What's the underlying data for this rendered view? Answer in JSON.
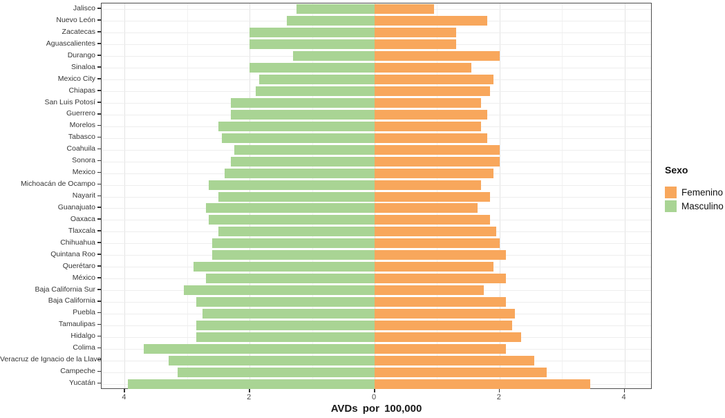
{
  "chart_data": {
    "type": "bar",
    "variant": "diverging-horizontal-pyramid",
    "title": "",
    "xlabel": "AVDs por 100,000",
    "ylabel": "",
    "xlim": [
      -4.4,
      4.45
    ],
    "grid": "major-and-minor",
    "x_ticks": [
      {
        "value": -4,
        "label": "4"
      },
      {
        "value": -2,
        "label": "2"
      },
      {
        "value": 0,
        "label": "0"
      },
      {
        "value": 2,
        "label": "2"
      },
      {
        "value": 4,
        "label": "4"
      }
    ],
    "legend": {
      "title": "Sexo",
      "position": "right",
      "items": [
        {
          "label": "Femenino",
          "color": "#F8A75C"
        },
        {
          "label": "Masculino",
          "color": "#A9D494"
        }
      ]
    },
    "categories": [
      "Jalisco",
      "Nuevo León",
      "Zacatecas",
      "Aguascalientes",
      "Durango",
      "Sinaloa",
      "Mexico City",
      "Chiapas",
      "San Luis Potosí",
      "Guerrero",
      "Morelos",
      "Tabasco",
      "Coahuila",
      "Sonora",
      "Mexico",
      "Michoacán de Ocampo",
      "Nayarit",
      "Guanajuato",
      "Oaxaca",
      "Tlaxcala",
      "Chihuahua",
      "Quintana Roo",
      "Querétaro",
      "México",
      "Baja California Sur",
      "Baja California",
      "Puebla",
      "Tamaulipas",
      "Hidalgo",
      "Colima",
      "Veracruz de Ignacio de la Llave",
      "Campeche",
      "Yucatán"
    ],
    "series": [
      {
        "name": "Masculino",
        "side": "left",
        "color": "#A9D494",
        "values": [
          1.25,
          1.4,
          2.0,
          2.0,
          1.3,
          2.0,
          1.85,
          1.9,
          2.3,
          2.3,
          2.5,
          2.45,
          2.25,
          2.3,
          2.4,
          2.65,
          2.5,
          2.7,
          2.65,
          2.5,
          2.6,
          2.6,
          2.9,
          2.7,
          3.05,
          2.85,
          2.75,
          2.85,
          2.85,
          3.7,
          3.3,
          3.15,
          3.95
        ]
      },
      {
        "name": "Femenino",
        "side": "right",
        "color": "#F8A75C",
        "values": [
          0.95,
          1.8,
          1.3,
          1.3,
          2.0,
          1.55,
          1.9,
          1.85,
          1.7,
          1.8,
          1.7,
          1.8,
          2.0,
          2.0,
          1.9,
          1.7,
          1.85,
          1.65,
          1.85,
          1.95,
          2.0,
          2.1,
          1.9,
          2.1,
          1.75,
          2.1,
          2.25,
          2.2,
          2.35,
          2.1,
          2.55,
          2.75,
          3.45
        ]
      }
    ]
  }
}
